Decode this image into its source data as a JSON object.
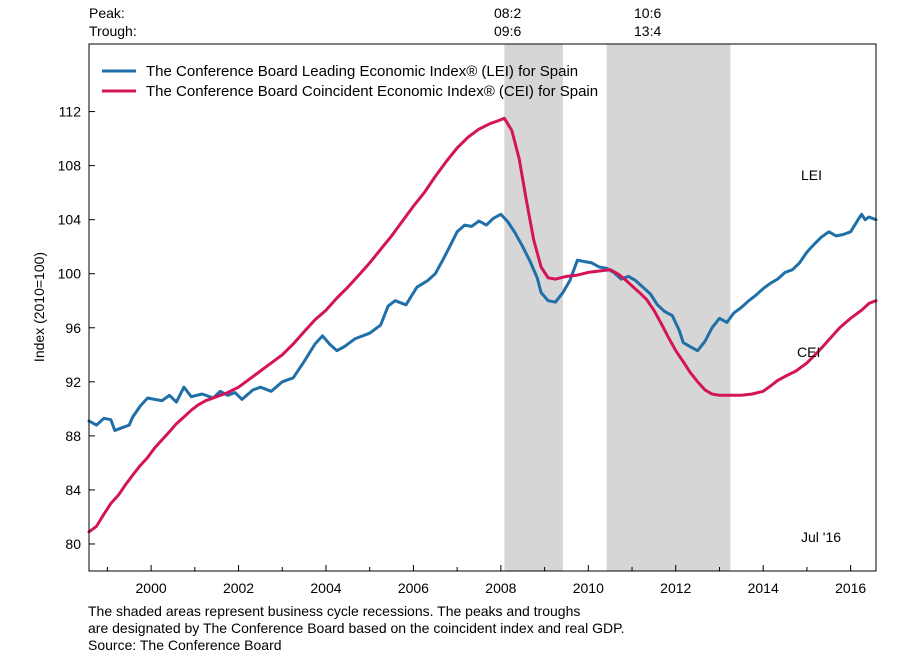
{
  "peak_label": "Peak:",
  "trough_label": "Trough:",
  "cycles": [
    {
      "peak": "08:2",
      "trough": "09:6"
    },
    {
      "peak": "10:6",
      "trough": "13:4"
    }
  ],
  "footnote": {
    "line1": "The shaded areas represent business cycle recessions. The peaks and troughs",
    "line2": "are designated by The Conference Board based on the coincident index and real GDP.",
    "source": "Source: The Conference Board"
  },
  "chart_data": {
    "type": "line",
    "ylabel": "Index (2010=100)",
    "ylim": [
      78,
      117
    ],
    "yticks": [
      80,
      84,
      88,
      92,
      96,
      100,
      104,
      108,
      112
    ],
    "xlim": [
      1998.58,
      2016.58
    ],
    "xticks": [
      2000,
      2002,
      2004,
      2006,
      2008,
      2010,
      2012,
      2014,
      2016
    ],
    "recessions": [
      [
        2008.08,
        2009.42
      ],
      [
        2010.42,
        2013.25
      ]
    ],
    "date_note": "Jul '16",
    "series": [
      {
        "name": "The Conference Board Leading Economic Index® (LEI) for Spain",
        "short": "LEI",
        "color": "#1f6fa8",
        "points": [
          [
            1998.58,
            89.1
          ],
          [
            1998.75,
            88.8
          ],
          [
            1998.92,
            89.3
          ],
          [
            1999.08,
            89.2
          ],
          [
            1999.17,
            88.4
          ],
          [
            1999.33,
            88.6
          ],
          [
            1999.5,
            88.8
          ],
          [
            1999.58,
            89.4
          ],
          [
            1999.75,
            90.2
          ],
          [
            1999.92,
            90.8
          ],
          [
            2000.08,
            90.7
          ],
          [
            2000.25,
            90.6
          ],
          [
            2000.42,
            91.0
          ],
          [
            2000.58,
            90.5
          ],
          [
            2000.75,
            91.6
          ],
          [
            2000.92,
            90.9
          ],
          [
            2001.17,
            91.1
          ],
          [
            2001.42,
            90.8
          ],
          [
            2001.58,
            91.3
          ],
          [
            2001.75,
            91.0
          ],
          [
            2001.92,
            91.2
          ],
          [
            2002.08,
            90.7
          ],
          [
            2002.33,
            91.4
          ],
          [
            2002.5,
            91.6
          ],
          [
            2002.75,
            91.3
          ],
          [
            2003.0,
            92.0
          ],
          [
            2003.25,
            92.3
          ],
          [
            2003.5,
            93.5
          ],
          [
            2003.75,
            94.8
          ],
          [
            2003.92,
            95.4
          ],
          [
            2004.08,
            94.8
          ],
          [
            2004.25,
            94.3
          ],
          [
            2004.42,
            94.6
          ],
          [
            2004.67,
            95.2
          ],
          [
            2005.0,
            95.6
          ],
          [
            2005.25,
            96.2
          ],
          [
            2005.42,
            97.6
          ],
          [
            2005.58,
            98.0
          ],
          [
            2005.83,
            97.7
          ],
          [
            2006.08,
            99.0
          ],
          [
            2006.33,
            99.5
          ],
          [
            2006.5,
            100.0
          ],
          [
            2006.67,
            101.0
          ],
          [
            2006.83,
            102.0
          ],
          [
            2007.0,
            103.1
          ],
          [
            2007.17,
            103.6
          ],
          [
            2007.33,
            103.5
          ],
          [
            2007.5,
            103.9
          ],
          [
            2007.67,
            103.6
          ],
          [
            2007.83,
            104.1
          ],
          [
            2008.0,
            104.4
          ],
          [
            2008.17,
            103.8
          ],
          [
            2008.33,
            103.0
          ],
          [
            2008.5,
            102.0
          ],
          [
            2008.67,
            100.9
          ],
          [
            2008.83,
            99.7
          ],
          [
            2008.92,
            98.6
          ],
          [
            2009.08,
            98.0
          ],
          [
            2009.25,
            97.9
          ],
          [
            2009.42,
            98.6
          ],
          [
            2009.58,
            99.5
          ],
          [
            2009.75,
            101.0
          ],
          [
            2009.92,
            100.9
          ],
          [
            2010.08,
            100.8
          ],
          [
            2010.25,
            100.5
          ],
          [
            2010.42,
            100.4
          ],
          [
            2010.58,
            100.1
          ],
          [
            2010.75,
            99.6
          ],
          [
            2010.92,
            99.8
          ],
          [
            2011.08,
            99.5
          ],
          [
            2011.25,
            99.0
          ],
          [
            2011.42,
            98.5
          ],
          [
            2011.58,
            97.7
          ],
          [
            2011.75,
            97.2
          ],
          [
            2011.92,
            96.9
          ],
          [
            2012.08,
            95.8
          ],
          [
            2012.17,
            94.9
          ],
          [
            2012.33,
            94.6
          ],
          [
            2012.5,
            94.3
          ],
          [
            2012.67,
            95.0
          ],
          [
            2012.83,
            96.0
          ],
          [
            2013.0,
            96.7
          ],
          [
            2013.17,
            96.4
          ],
          [
            2013.33,
            97.1
          ],
          [
            2013.5,
            97.5
          ],
          [
            2013.67,
            98.0
          ],
          [
            2013.83,
            98.4
          ],
          [
            2014.0,
            98.9
          ],
          [
            2014.17,
            99.3
          ],
          [
            2014.33,
            99.6
          ],
          [
            2014.5,
            100.1
          ],
          [
            2014.67,
            100.3
          ],
          [
            2014.83,
            100.8
          ],
          [
            2015.0,
            101.6
          ],
          [
            2015.17,
            102.2
          ],
          [
            2015.33,
            102.7
          ],
          [
            2015.5,
            103.1
          ],
          [
            2015.67,
            102.8
          ],
          [
            2015.83,
            102.9
          ],
          [
            2016.0,
            103.1
          ],
          [
            2016.17,
            104.0
          ],
          [
            2016.25,
            104.4
          ],
          [
            2016.33,
            104.0
          ],
          [
            2016.42,
            104.2
          ],
          [
            2016.58,
            104.0
          ]
        ]
      },
      {
        "name": "The Conference Board Coincident Economic Index® (CEI) for Spain",
        "short": "CEI",
        "color": "#d4145a",
        "points": [
          [
            1998.58,
            80.9
          ],
          [
            1998.75,
            81.3
          ],
          [
            1998.92,
            82.2
          ],
          [
            1999.08,
            83.0
          ],
          [
            1999.25,
            83.6
          ],
          [
            1999.42,
            84.4
          ],
          [
            1999.58,
            85.1
          ],
          [
            1999.75,
            85.8
          ],
          [
            1999.92,
            86.4
          ],
          [
            2000.08,
            87.1
          ],
          [
            2000.25,
            87.7
          ],
          [
            2000.42,
            88.3
          ],
          [
            2000.58,
            88.9
          ],
          [
            2000.75,
            89.4
          ],
          [
            2000.92,
            89.9
          ],
          [
            2001.08,
            90.3
          ],
          [
            2001.25,
            90.6
          ],
          [
            2001.5,
            90.9
          ],
          [
            2001.75,
            91.2
          ],
          [
            2002.0,
            91.6
          ],
          [
            2002.25,
            92.2
          ],
          [
            2002.5,
            92.8
          ],
          [
            2002.75,
            93.4
          ],
          [
            2003.0,
            94.0
          ],
          [
            2003.25,
            94.8
          ],
          [
            2003.5,
            95.7
          ],
          [
            2003.75,
            96.6
          ],
          [
            2004.0,
            97.3
          ],
          [
            2004.25,
            98.2
          ],
          [
            2004.5,
            99.0
          ],
          [
            2004.75,
            99.9
          ],
          [
            2005.0,
            100.8
          ],
          [
            2005.25,
            101.8
          ],
          [
            2005.5,
            102.8
          ],
          [
            2005.75,
            103.9
          ],
          [
            2006.0,
            105.0
          ],
          [
            2006.25,
            106.0
          ],
          [
            2006.5,
            107.2
          ],
          [
            2006.75,
            108.3
          ],
          [
            2007.0,
            109.3
          ],
          [
            2007.25,
            110.1
          ],
          [
            2007.5,
            110.7
          ],
          [
            2007.75,
            111.1
          ],
          [
            2007.92,
            111.3
          ],
          [
            2008.08,
            111.5
          ],
          [
            2008.25,
            110.6
          ],
          [
            2008.42,
            108.5
          ],
          [
            2008.58,
            105.5
          ],
          [
            2008.75,
            102.5
          ],
          [
            2008.92,
            100.5
          ],
          [
            2009.08,
            99.7
          ],
          [
            2009.25,
            99.6
          ],
          [
            2009.5,
            99.8
          ],
          [
            2009.75,
            99.9
          ],
          [
            2010.0,
            100.1
          ],
          [
            2010.25,
            100.2
          ],
          [
            2010.5,
            100.3
          ],
          [
            2010.67,
            100.0
          ],
          [
            2010.83,
            99.6
          ],
          [
            2011.0,
            99.1
          ],
          [
            2011.17,
            98.6
          ],
          [
            2011.33,
            98.1
          ],
          [
            2011.5,
            97.3
          ],
          [
            2011.67,
            96.3
          ],
          [
            2011.83,
            95.3
          ],
          [
            2012.0,
            94.3
          ],
          [
            2012.17,
            93.5
          ],
          [
            2012.33,
            92.7
          ],
          [
            2012.5,
            92.0
          ],
          [
            2012.67,
            91.4
          ],
          [
            2012.83,
            91.1
          ],
          [
            2013.0,
            91.0
          ],
          [
            2013.25,
            91.0
          ],
          [
            2013.5,
            91.0
          ],
          [
            2013.75,
            91.1
          ],
          [
            2014.0,
            91.3
          ],
          [
            2014.17,
            91.7
          ],
          [
            2014.33,
            92.1
          ],
          [
            2014.5,
            92.4
          ],
          [
            2014.75,
            92.8
          ],
          [
            2015.0,
            93.4
          ],
          [
            2015.25,
            94.2
          ],
          [
            2015.5,
            95.1
          ],
          [
            2015.75,
            96.0
          ],
          [
            2016.0,
            96.7
          ],
          [
            2016.25,
            97.3
          ],
          [
            2016.42,
            97.8
          ],
          [
            2016.58,
            98.0
          ]
        ]
      }
    ]
  }
}
